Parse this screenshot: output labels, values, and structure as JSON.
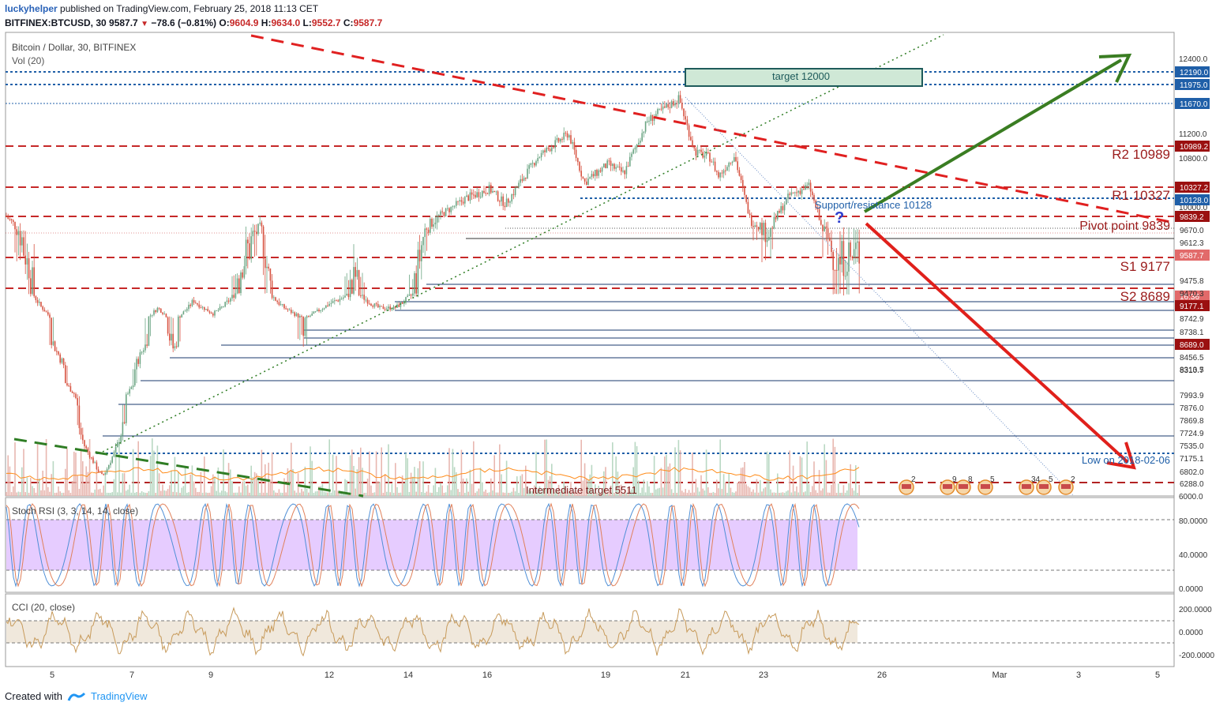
{
  "header": {
    "user": "luckyhelper",
    "published_text": "published on TradingView.com, February 25, 2018 11:13 CET"
  },
  "symbol_bar": {
    "symbol": "BITFINEX:BTCUSD, 30",
    "last": "9587.7",
    "change": "−78.6 (−0.81%)",
    "o_label": "O:",
    "o": "9604.9",
    "h_label": "H:",
    "h": "9634.0",
    "l_label": "L:",
    "l": "9552.7",
    "c_label": "C:",
    "c": "9587.7"
  },
  "panes": {
    "main_title": "Bitcoin / Dollar, 30, BITFINEX",
    "vol_label": "Vol (20)",
    "stoch_label": "Stoch RSI (3, 3, 14, 14, close)",
    "cci_label": "CCI (20, close)"
  },
  "chart_data": {
    "type": "candlestick",
    "price_axis": {
      "ylim": [
        6000,
        12600
      ],
      "ticks": [
        "12400.0",
        "11200.0",
        "10800.0",
        "10000.0",
        "6000.0"
      ]
    },
    "price_labels": [
      {
        "text": "12190.0",
        "value": 12190,
        "style": "blue"
      },
      {
        "text": "11975.0",
        "value": 11975,
        "style": "blue"
      },
      {
        "text": "11670.0",
        "value": 11670,
        "style": "blue"
      },
      {
        "text": "10989.2",
        "value": 10989.2,
        "style": "red"
      },
      {
        "text": "10327.2",
        "value": 10327.2,
        "style": "red"
      },
      {
        "text": "10128.0",
        "value": 10128,
        "style": "blue"
      },
      {
        "text": "9839.2",
        "value": 9839.2,
        "style": "red"
      },
      {
        "text": "9670.0",
        "value": 9670,
        "style": "plain"
      },
      {
        "text": "9612.3",
        "value": 9612.3,
        "style": "plain"
      },
      {
        "text": "9587.7",
        "value": 9587.7,
        "style": "last"
      },
      {
        "text": "16:36",
        "value": 9400,
        "style": "timer"
      },
      {
        "text": "9475.8",
        "value": 9475.8,
        "style": "plain"
      },
      {
        "text": "9470.3",
        "value": 9470.3,
        "style": "plain"
      },
      {
        "text": "9177.1",
        "value": 9177.1,
        "style": "red"
      },
      {
        "text": "8742.9",
        "value": 8742.9,
        "style": "plain"
      },
      {
        "text": "8738.1",
        "value": 8738.1,
        "style": "plain"
      },
      {
        "text": "8689.0",
        "value": 8689,
        "style": "red"
      },
      {
        "text": "8456.5",
        "value": 8456.5,
        "style": "plain"
      },
      {
        "text": "8310.7",
        "value": 8310.7,
        "style": "plain"
      },
      {
        "text": "8313.5",
        "value": 8313.5,
        "style": "plain"
      },
      {
        "text": "7993.9",
        "value": 7993.9,
        "style": "plain"
      },
      {
        "text": "7876.0",
        "value": 7876,
        "style": "plain"
      },
      {
        "text": "7869.8",
        "value": 7869.8,
        "style": "plain"
      },
      {
        "text": "7724.9",
        "value": 7724.9,
        "style": "plain"
      },
      {
        "text": "7535.0",
        "value": 7535,
        "style": "plain"
      },
      {
        "text": "7175.1",
        "value": 7175.1,
        "style": "plain"
      },
      {
        "text": "6802.0",
        "value": 6802,
        "style": "plain"
      },
      {
        "text": "6288.0",
        "value": 6288,
        "style": "plain"
      }
    ],
    "x_axis_ticks": [
      "5",
      "7",
      "9",
      "12",
      "14",
      "16",
      "19",
      "21",
      "23",
      "26",
      "Mar",
      "3",
      "5"
    ],
    "annotations": {
      "target_box": "target 12000",
      "r2": "R2 10989",
      "r1": "R1 10327",
      "support_resistance": "Support/resistance 10128",
      "pivot": "Pivot point 9839",
      "s1": "S1 9177",
      "s2": "S2 8689",
      "low": "Low on 2018-02-06",
      "intermediate": "Intermediate target 5511",
      "question": "?"
    },
    "event_markers": [
      "2",
      "9",
      "8",
      "5",
      "34",
      "5",
      "2"
    ],
    "stoch_axis": [
      "80.0000",
      "40.0000",
      "0.0000"
    ],
    "stoch_band": [
      20,
      80
    ],
    "cci_axis": [
      "200.0000",
      "0.0000",
      "-200.0000"
    ],
    "cci_band": [
      -100,
      100
    ]
  },
  "colors": {
    "up": "#6ba583",
    "down": "#d75442",
    "red_line": "#c62828",
    "blue_line": "#1f5fa8",
    "green_arrow": "#3a7d22",
    "red_arrow": "#e0201b",
    "stoch_fill": "#e6ccff",
    "cci_fill": "#f0e8dc"
  },
  "footer": {
    "created_with": "Created with",
    "brand": "TradingView"
  }
}
